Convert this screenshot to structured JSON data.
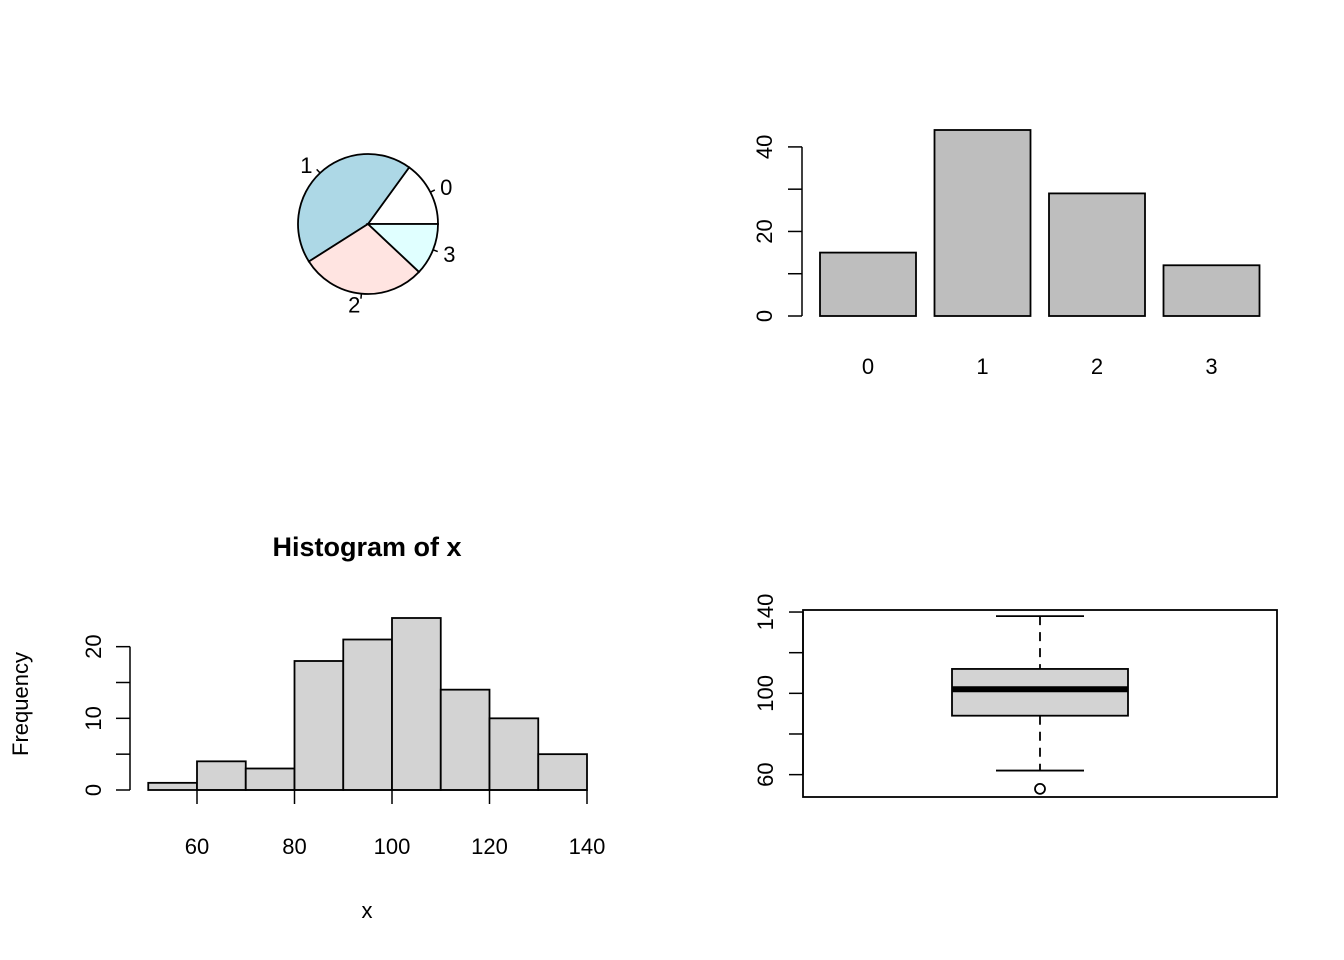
{
  "colors": {
    "pie_slices": [
      "#ffffff",
      "#add8e6",
      "#ffe4e1",
      "#e0ffff"
    ],
    "bar_fill": "#bebebe",
    "hist_fill": "#d3d3d3",
    "box_fill": "#d3d3d3",
    "stroke": "#000000"
  },
  "chart_data": [
    {
      "type": "pie",
      "labels": [
        "0",
        "1",
        "2",
        "3"
      ],
      "values": [
        15,
        44,
        29,
        12
      ]
    },
    {
      "type": "bar",
      "categories": [
        "0",
        "1",
        "2",
        "3"
      ],
      "values": [
        15,
        44,
        29,
        12
      ],
      "ylim": [
        0,
        44
      ],
      "yticks": [
        0,
        20,
        40
      ],
      "yminor": [
        10,
        30
      ],
      "title": "",
      "xlabel": "",
      "ylabel": ""
    },
    {
      "type": "bar",
      "subtype": "histogram",
      "title": "Histogram of x",
      "xlabel": "x",
      "ylabel": "Frequency",
      "bins": [
        [
          50,
          60
        ],
        [
          60,
          70
        ],
        [
          70,
          80
        ],
        [
          80,
          90
        ],
        [
          90,
          100
        ],
        [
          100,
          110
        ],
        [
          110,
          120
        ],
        [
          120,
          130
        ],
        [
          130,
          140
        ]
      ],
      "values": [
        1,
        4,
        3,
        18,
        21,
        24,
        14,
        10,
        5
      ],
      "xticks": [
        60,
        80,
        100,
        120,
        140
      ],
      "yticks": [
        0,
        10,
        20
      ],
      "yminor": [
        5,
        15
      ],
      "ylim": [
        0,
        24
      ]
    },
    {
      "type": "box",
      "stats": {
        "lower_whisker": 62,
        "q1": 89,
        "median": 102,
        "q3": 112,
        "upper_whisker": 138
      },
      "outliers": [
        53
      ],
      "ylim": [
        49,
        141
      ],
      "yticks": [
        60,
        100,
        140
      ],
      "yminor": [
        80,
        120
      ]
    }
  ]
}
